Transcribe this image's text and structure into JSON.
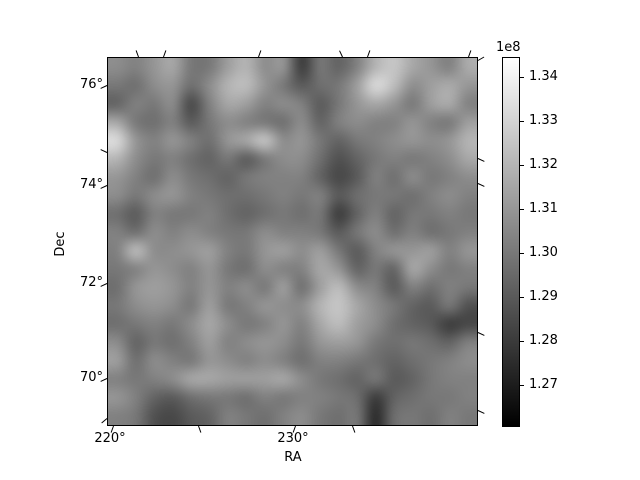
{
  "figure": {
    "background": "#ffffff",
    "frame_color": "#000000"
  },
  "chart_data": {
    "type": "heatmap",
    "title": "",
    "xlabel": "RA",
    "ylabel": "Dec",
    "x_tick_labels": [
      "220°",
      "230°"
    ],
    "y_tick_labels": [
      "76°",
      "74°",
      "72°",
      "70°"
    ],
    "x_range_deg": [
      219.7,
      240.1
    ],
    "y_range_deg": [
      69.0,
      76.6
    ],
    "colormap": "gray",
    "grid": "off",
    "legend": "none",
    "value_units": "1e8",
    "vmin": 1.2605,
    "vmax": 1.3445,
    "colorbar": {
      "offset_label": "1e8",
      "tick_values": [
        1.34,
        1.33,
        1.32,
        1.31,
        1.3,
        1.29,
        1.28,
        1.27
      ],
      "tick_labels": [
        "1.34",
        "1.33",
        "1.32",
        "1.31",
        "1.30",
        "1.29",
        "1.28",
        "1.27"
      ],
      "position": "right"
    },
    "grid_size": [
      20,
      20
    ],
    "values": [
      [
        1.307,
        1.303,
        1.31,
        1.316,
        1.3,
        1.3,
        1.313,
        1.32,
        1.307,
        1.31,
        1.28,
        1.3,
        1.293,
        1.303,
        1.32,
        1.326,
        1.316,
        1.31,
        1.303,
        1.317
      ],
      [
        1.3,
        1.297,
        1.307,
        1.31,
        1.297,
        1.307,
        1.32,
        1.323,
        1.31,
        1.3,
        1.29,
        1.297,
        1.3,
        1.313,
        1.333,
        1.323,
        1.307,
        1.313,
        1.317,
        1.31
      ],
      [
        1.293,
        1.303,
        1.3,
        1.307,
        1.284,
        1.303,
        1.316,
        1.313,
        1.303,
        1.307,
        1.303,
        1.29,
        1.3,
        1.31,
        1.316,
        1.31,
        1.3,
        1.313,
        1.317,
        1.303
      ],
      [
        1.316,
        1.3,
        1.297,
        1.303,
        1.29,
        1.3,
        1.307,
        1.303,
        1.3,
        1.297,
        1.307,
        1.293,
        1.303,
        1.307,
        1.303,
        1.303,
        1.31,
        1.303,
        1.3,
        1.313
      ],
      [
        1.333,
        1.31,
        1.303,
        1.31,
        1.303,
        1.297,
        1.31,
        1.316,
        1.326,
        1.307,
        1.31,
        1.3,
        1.293,
        1.3,
        1.303,
        1.307,
        1.31,
        1.307,
        1.31,
        1.32
      ],
      [
        1.32,
        1.307,
        1.3,
        1.303,
        1.297,
        1.293,
        1.3,
        1.29,
        1.3,
        1.307,
        1.307,
        1.297,
        1.287,
        1.293,
        1.3,
        1.303,
        1.3,
        1.303,
        1.307,
        1.316
      ],
      [
        1.31,
        1.303,
        1.297,
        1.307,
        1.3,
        1.297,
        1.293,
        1.3,
        1.303,
        1.303,
        1.303,
        1.293,
        1.284,
        1.29,
        1.303,
        1.297,
        1.307,
        1.3,
        1.303,
        1.307
      ],
      [
        1.307,
        1.3,
        1.307,
        1.31,
        1.303,
        1.3,
        1.297,
        1.297,
        1.3,
        1.303,
        1.3,
        1.303,
        1.29,
        1.297,
        1.3,
        1.3,
        1.297,
        1.303,
        1.307,
        1.303
      ],
      [
        1.297,
        1.29,
        1.303,
        1.3,
        1.3,
        1.303,
        1.297,
        1.293,
        1.297,
        1.3,
        1.297,
        1.3,
        1.28,
        1.293,
        1.303,
        1.293,
        1.3,
        1.3,
        1.303,
        1.3
      ],
      [
        1.303,
        1.297,
        1.307,
        1.303,
        1.307,
        1.303,
        1.3,
        1.3,
        1.307,
        1.303,
        1.303,
        1.3,
        1.29,
        1.3,
        1.307,
        1.297,
        1.303,
        1.297,
        1.3,
        1.303
      ],
      [
        1.303,
        1.323,
        1.307,
        1.307,
        1.31,
        1.313,
        1.303,
        1.3,
        1.31,
        1.313,
        1.307,
        1.313,
        1.3,
        1.29,
        1.303,
        1.31,
        1.31,
        1.313,
        1.303,
        1.31
      ],
      [
        1.3,
        1.303,
        1.31,
        1.307,
        1.303,
        1.31,
        1.3,
        1.297,
        1.307,
        1.303,
        1.303,
        1.316,
        1.31,
        1.293,
        1.3,
        1.293,
        1.316,
        1.307,
        1.3,
        1.303
      ],
      [
        1.297,
        1.31,
        1.313,
        1.31,
        1.303,
        1.31,
        1.303,
        1.307,
        1.3,
        1.313,
        1.297,
        1.313,
        1.323,
        1.307,
        1.303,
        1.29,
        1.303,
        1.297,
        1.303,
        1.3
      ],
      [
        1.3,
        1.307,
        1.31,
        1.307,
        1.3,
        1.313,
        1.3,
        1.303,
        1.31,
        1.307,
        1.307,
        1.32,
        1.326,
        1.316,
        1.307,
        1.3,
        1.293,
        1.29,
        1.3,
        1.287
      ],
      [
        1.297,
        1.3,
        1.303,
        1.3,
        1.307,
        1.316,
        1.307,
        1.3,
        1.303,
        1.31,
        1.303,
        1.316,
        1.323,
        1.313,
        1.307,
        1.297,
        1.293,
        1.29,
        1.28,
        1.284
      ],
      [
        1.307,
        1.293,
        1.3,
        1.297,
        1.303,
        1.313,
        1.303,
        1.307,
        1.31,
        1.307,
        1.3,
        1.31,
        1.313,
        1.31,
        1.3,
        1.297,
        1.3,
        1.297,
        1.293,
        1.303
      ],
      [
        1.313,
        1.297,
        1.307,
        1.303,
        1.3,
        1.31,
        1.307,
        1.303,
        1.307,
        1.303,
        1.297,
        1.303,
        1.303,
        1.3,
        1.297,
        1.293,
        1.297,
        1.3,
        1.303,
        1.307
      ],
      [
        1.303,
        1.3,
        1.303,
        1.307,
        1.316,
        1.316,
        1.313,
        1.313,
        1.313,
        1.316,
        1.307,
        1.3,
        1.297,
        1.293,
        1.3,
        1.29,
        1.293,
        1.3,
        1.303,
        1.303
      ],
      [
        1.31,
        1.303,
        1.293,
        1.29,
        1.297,
        1.3,
        1.3,
        1.297,
        1.303,
        1.3,
        1.303,
        1.303,
        1.3,
        1.297,
        1.28,
        1.293,
        1.297,
        1.3,
        1.3,
        1.303
      ],
      [
        1.303,
        1.3,
        1.287,
        1.284,
        1.29,
        1.293,
        1.303,
        1.3,
        1.297,
        1.303,
        1.307,
        1.3,
        1.297,
        1.3,
        1.274,
        1.297,
        1.3,
        1.297,
        1.303,
        1.3
      ]
    ]
  }
}
